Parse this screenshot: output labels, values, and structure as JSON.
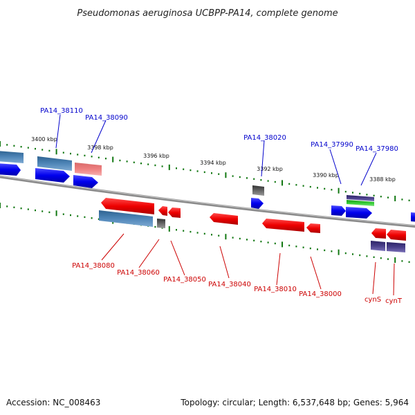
{
  "title": "Pseudomonas aeruginosa UCBPP-PA14, complete genome",
  "accession": "Accession: NC_008463",
  "summary": "Topology: circular; Length: 6,537,648 bp; Genes: 5,964",
  "colors": {
    "forward_gene": "#0000ee",
    "reverse_gene": "#ee0000",
    "operon_blue": "#4f86b8",
    "operon_pink": "#ee8080",
    "operon_purple": "#4a3f8a",
    "green_gene": "#33cc33",
    "gray_gene": "#666666",
    "backbone": "#777777",
    "tick": "#117711",
    "label_forward": "#0000cc",
    "label_reverse": "#cc0000"
  },
  "kbp_ticks": [
    "3400 kbp",
    "3398 kbp",
    "3396 kbp",
    "3394 kbp",
    "3392 kbp",
    "3390 kbp",
    "3388 kbp"
  ],
  "forward_labels": [
    "PA14_38110",
    "PA14_38090",
    "PA14_38020",
    "PA14_37990",
    "PA14_37980"
  ],
  "reverse_labels": [
    "PA14_38080",
    "PA14_38060",
    "PA14_38050",
    "PA14_38040",
    "PA14_38010",
    "PA14_38000",
    "cynS",
    "cynT"
  ]
}
